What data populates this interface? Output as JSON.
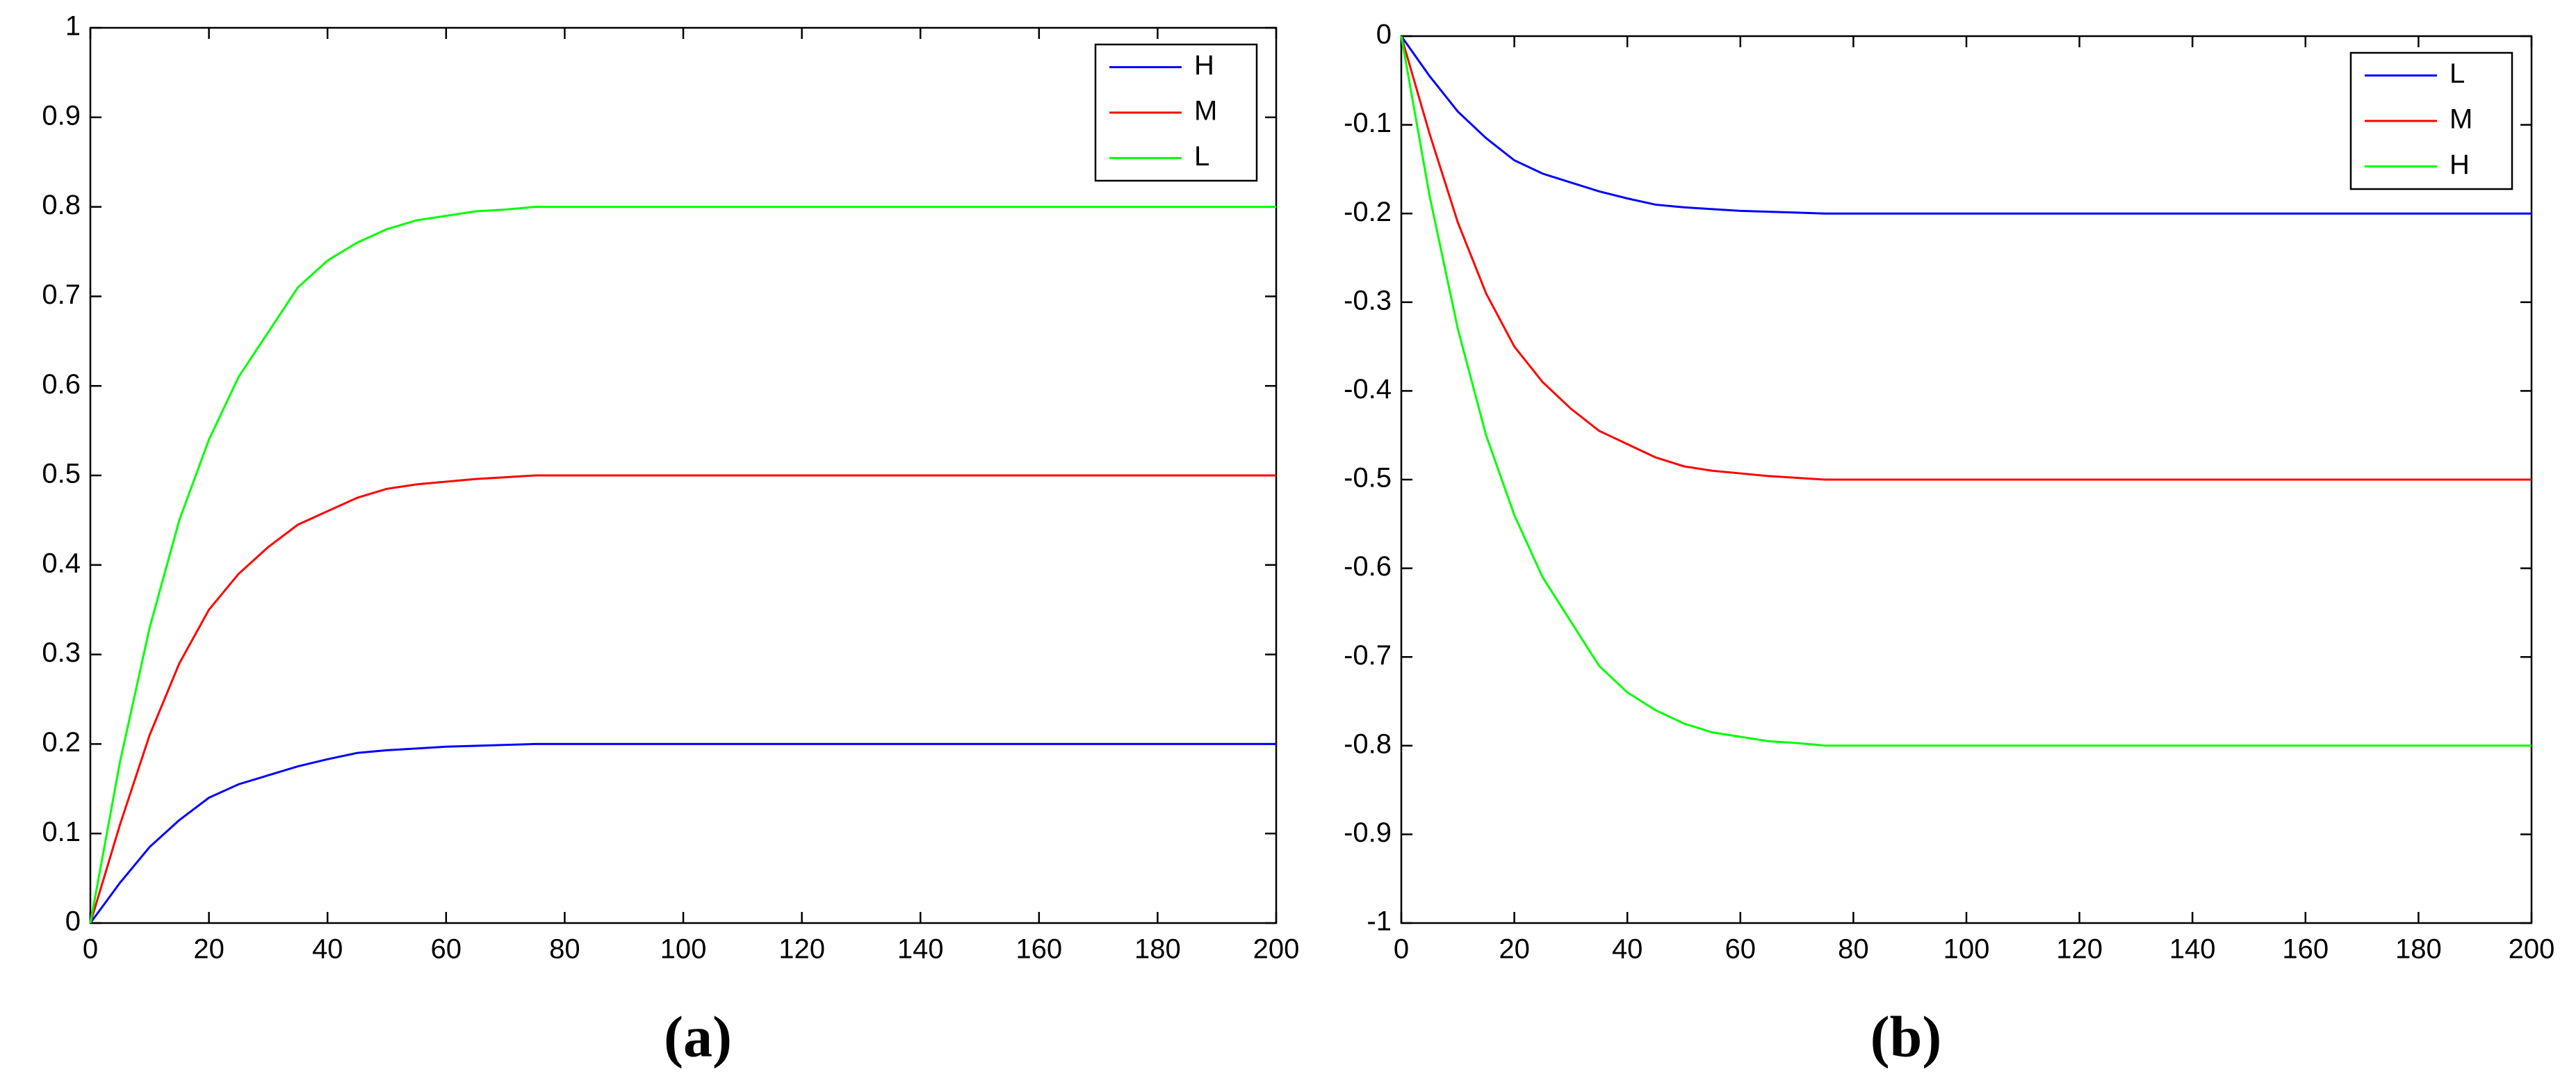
{
  "chart_data": [
    {
      "type": "line",
      "title": "(a)",
      "x": [
        0,
        5,
        10,
        15,
        20,
        25,
        30,
        35,
        40,
        45,
        50,
        55,
        60,
        65,
        70,
        75,
        80,
        90,
        100,
        120,
        140,
        160,
        180,
        200
      ],
      "series": [
        {
          "name": "H",
          "color": "#0000ff",
          "values": [
            0,
            0.045,
            0.085,
            0.115,
            0.14,
            0.155,
            0.165,
            0.175,
            0.183,
            0.19,
            0.193,
            0.195,
            0.197,
            0.198,
            0.199,
            0.2,
            0.2,
            0.2,
            0.2,
            0.2,
            0.2,
            0.2,
            0.2,
            0.2
          ]
        },
        {
          "name": "M",
          "color": "#ff0000",
          "values": [
            0,
            0.11,
            0.21,
            0.29,
            0.35,
            0.39,
            0.42,
            0.445,
            0.46,
            0.475,
            0.485,
            0.49,
            0.493,
            0.496,
            0.498,
            0.5,
            0.5,
            0.5,
            0.5,
            0.5,
            0.5,
            0.5,
            0.5,
            0.5
          ]
        },
        {
          "name": "L",
          "color": "#00ff00",
          "values": [
            0,
            0.18,
            0.33,
            0.45,
            0.54,
            0.61,
            0.66,
            0.71,
            0.74,
            0.76,
            0.775,
            0.785,
            0.79,
            0.795,
            0.797,
            0.8,
            0.8,
            0.8,
            0.8,
            0.8,
            0.8,
            0.8,
            0.8,
            0.8
          ]
        }
      ],
      "xlim": [
        0,
        200
      ],
      "ylim": [
        0,
        1
      ],
      "xticks": [
        0,
        20,
        40,
        60,
        80,
        100,
        120,
        140,
        160,
        180,
        200
      ],
      "yticks": [
        0,
        0.1,
        0.2,
        0.3,
        0.4,
        0.5,
        0.6,
        0.7,
        0.8,
        0.9,
        1
      ],
      "legend": "upper right"
    },
    {
      "type": "line",
      "title": "(b)",
      "x": [
        0,
        5,
        10,
        15,
        20,
        25,
        30,
        35,
        40,
        45,
        50,
        55,
        60,
        65,
        70,
        75,
        80,
        90,
        100,
        120,
        140,
        160,
        180,
        200
      ],
      "series": [
        {
          "name": "L",
          "color": "#0000ff",
          "values": [
            0,
            -0.045,
            -0.085,
            -0.115,
            -0.14,
            -0.155,
            -0.165,
            -0.175,
            -0.183,
            -0.19,
            -0.193,
            -0.195,
            -0.197,
            -0.198,
            -0.199,
            -0.2,
            -0.2,
            -0.2,
            -0.2,
            -0.2,
            -0.2,
            -0.2,
            -0.2,
            -0.2
          ]
        },
        {
          "name": "M",
          "color": "#ff0000",
          "values": [
            0,
            -0.11,
            -0.21,
            -0.29,
            -0.35,
            -0.39,
            -0.42,
            -0.445,
            -0.46,
            -0.475,
            -0.485,
            -0.49,
            -0.493,
            -0.496,
            -0.498,
            -0.5,
            -0.5,
            -0.5,
            -0.5,
            -0.5,
            -0.5,
            -0.5,
            -0.5,
            -0.5
          ]
        },
        {
          "name": "H",
          "color": "#00ff00",
          "values": [
            0,
            -0.18,
            -0.33,
            -0.45,
            -0.54,
            -0.61,
            -0.66,
            -0.71,
            -0.74,
            -0.76,
            -0.775,
            -0.785,
            -0.79,
            -0.795,
            -0.797,
            -0.8,
            -0.8,
            -0.8,
            -0.8,
            -0.8,
            -0.8,
            -0.8,
            -0.8,
            -0.8
          ]
        }
      ],
      "xlim": [
        0,
        200
      ],
      "ylim": [
        -1,
        0
      ],
      "xticks": [
        0,
        20,
        40,
        60,
        80,
        100,
        120,
        140,
        160,
        180,
        200
      ],
      "yticks": [
        -1,
        -0.9,
        -0.8,
        -0.7,
        -0.6,
        -0.5,
        -0.4,
        -0.3,
        -0.2,
        -0.1,
        0
      ],
      "legend": "upper right"
    }
  ]
}
